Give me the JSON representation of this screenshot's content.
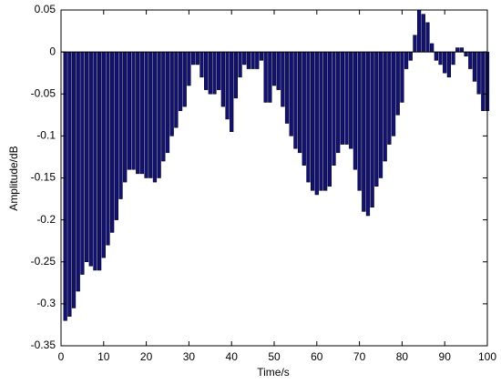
{
  "chart_data": {
    "type": "bar",
    "x_label": "Time/s",
    "y_label": "Amplitude/dB",
    "x": [
      1,
      2,
      3,
      4,
      5,
      6,
      7,
      8,
      9,
      10,
      11,
      12,
      13,
      14,
      15,
      16,
      17,
      18,
      19,
      20,
      21,
      22,
      23,
      24,
      25,
      26,
      27,
      28,
      29,
      30,
      31,
      32,
      33,
      34,
      35,
      36,
      37,
      38,
      39,
      40,
      41,
      42,
      43,
      44,
      45,
      46,
      47,
      48,
      49,
      50,
      51,
      52,
      53,
      54,
      55,
      56,
      57,
      58,
      59,
      60,
      61,
      62,
      63,
      64,
      65,
      66,
      67,
      68,
      69,
      70,
      71,
      72,
      73,
      74,
      75,
      76,
      77,
      78,
      79,
      80,
      81,
      82,
      83,
      84,
      85,
      86,
      87,
      88,
      89,
      90,
      91,
      92,
      93,
      94,
      95,
      96,
      97,
      98,
      99,
      100
    ],
    "values": [
      -0.32,
      -0.315,
      -0.305,
      -0.285,
      -0.265,
      -0.25,
      -0.255,
      -0.26,
      -0.26,
      -0.245,
      -0.23,
      -0.215,
      -0.2,
      -0.175,
      -0.155,
      -0.14,
      -0.14,
      -0.145,
      -0.145,
      -0.15,
      -0.15,
      -0.155,
      -0.15,
      -0.13,
      -0.12,
      -0.1,
      -0.09,
      -0.07,
      -0.065,
      -0.04,
      -0.015,
      -0.015,
      -0.03,
      -0.045,
      -0.05,
      -0.05,
      -0.045,
      -0.065,
      -0.08,
      -0.095,
      -0.055,
      -0.03,
      -0.015,
      -0.02,
      -0.02,
      -0.02,
      -0.01,
      -0.06,
      -0.06,
      -0.04,
      -0.045,
      -0.065,
      -0.085,
      -0.1,
      -0.115,
      -0.12,
      -0.135,
      -0.155,
      -0.165,
      -0.17,
      -0.165,
      -0.165,
      -0.16,
      -0.135,
      -0.12,
      -0.11,
      -0.11,
      -0.115,
      -0.14,
      -0.165,
      -0.19,
      -0.195,
      -0.185,
      -0.16,
      -0.15,
      -0.13,
      -0.11,
      -0.1,
      -0.075,
      -0.06,
      -0.02,
      -0.01,
      0.02,
      0.05,
      0.045,
      0.035,
      0.01,
      -0.01,
      -0.015,
      -0.025,
      -0.03,
      -0.015,
      0.005,
      0.005,
      -0.005,
      -0.02,
      -0.035,
      -0.05,
      -0.07,
      -0.07
    ],
    "color": "#10107e",
    "xlim": [
      0,
      100
    ],
    "xticks": [
      0,
      10,
      20,
      30,
      40,
      50,
      60,
      70,
      80,
      90,
      100
    ],
    "ylim": [
      -0.35,
      0.05
    ],
    "yticks": [
      0.05,
      0,
      -0.05,
      -0.1,
      -0.15,
      -0.2,
      -0.25,
      -0.3,
      -0.35
    ]
  }
}
